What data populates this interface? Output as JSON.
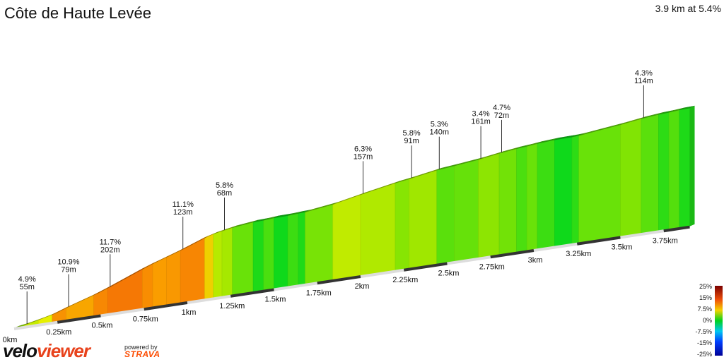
{
  "header": {
    "title": "Côte de Haute Levée",
    "summary": "3.9 km at 5.4%"
  },
  "branding": {
    "velo": "velo",
    "viewer": "viewer",
    "powered_by": "powered by",
    "strava": "STRAVA",
    "velo_color": "#111111",
    "viewer_color": "#e8421c",
    "strava_color": "#fc4c02"
  },
  "chart_data": {
    "type": "area",
    "title": "Côte de Haute Levée",
    "summary": "3.9 km at 5.4%",
    "xlabel": "",
    "ylabel": "",
    "x_ticks": [
      "0km",
      "0.25km",
      "0.5km",
      "0.75km",
      "1km",
      "1.25km",
      "1.5km",
      "1.75km",
      "2km",
      "2.25km",
      "2.5km",
      "2.75km",
      "3km",
      "3.25km",
      "3.5km",
      "3.75km"
    ],
    "x_unit": "km",
    "xlim": [
      0,
      3.9
    ],
    "segments": [
      {
        "start_km": 0.0,
        "end_km": 0.06,
        "gradient_pct": 4.9
      },
      {
        "start_km": 0.06,
        "end_km": 0.14,
        "gradient_pct": 6.5
      },
      {
        "start_km": 0.14,
        "end_km": 0.22,
        "gradient_pct": 7.5
      },
      {
        "start_km": 0.22,
        "end_km": 0.3,
        "gradient_pct": 10.9
      },
      {
        "start_km": 0.3,
        "end_km": 0.46,
        "gradient_pct": 9.8
      },
      {
        "start_km": 0.46,
        "end_km": 0.54,
        "gradient_pct": 11.5
      },
      {
        "start_km": 0.54,
        "end_km": 0.74,
        "gradient_pct": 12.5
      },
      {
        "start_km": 0.74,
        "end_km": 0.8,
        "gradient_pct": 11.2
      },
      {
        "start_km": 0.8,
        "end_km": 0.88,
        "gradient_pct": 10.2
      },
      {
        "start_km": 0.88,
        "end_km": 0.96,
        "gradient_pct": 10.5
      },
      {
        "start_km": 0.96,
        "end_km": 1.1,
        "gradient_pct": 11.6
      },
      {
        "start_km": 1.1,
        "end_km": 1.15,
        "gradient_pct": 8.5
      },
      {
        "start_km": 1.15,
        "end_km": 1.2,
        "gradient_pct": 6.0
      },
      {
        "start_km": 1.2,
        "end_km": 1.26,
        "gradient_pct": 5.5
      },
      {
        "start_km": 1.26,
        "end_km": 1.38,
        "gradient_pct": 3.5
      },
      {
        "start_km": 1.38,
        "end_km": 1.44,
        "gradient_pct": 1.0
      },
      {
        "start_km": 1.44,
        "end_km": 1.5,
        "gradient_pct": 2.5
      },
      {
        "start_km": 1.5,
        "end_km": 1.58,
        "gradient_pct": 0.5
      },
      {
        "start_km": 1.58,
        "end_km": 1.64,
        "gradient_pct": 2.0
      },
      {
        "start_km": 1.64,
        "end_km": 1.68,
        "gradient_pct": 1.0
      },
      {
        "start_km": 1.68,
        "end_km": 1.84,
        "gradient_pct": 4.0
      },
      {
        "start_km": 1.84,
        "end_km": 2.0,
        "gradient_pct": 6.3
      },
      {
        "start_km": 2.0,
        "end_km": 2.2,
        "gradient_pct": 5.8
      },
      {
        "start_km": 2.2,
        "end_km": 2.28,
        "gradient_pct": 4.5
      },
      {
        "start_km": 2.28,
        "end_km": 2.44,
        "gradient_pct": 5.3
      },
      {
        "start_km": 2.44,
        "end_km": 2.54,
        "gradient_pct": 3.0
      },
      {
        "start_km": 2.54,
        "end_km": 2.68,
        "gradient_pct": 3.4
      },
      {
        "start_km": 2.68,
        "end_km": 2.8,
        "gradient_pct": 4.7
      },
      {
        "start_km": 2.8,
        "end_km": 2.9,
        "gradient_pct": 3.8
      },
      {
        "start_km": 2.9,
        "end_km": 2.96,
        "gradient_pct": 2.5
      },
      {
        "start_km": 2.96,
        "end_km": 3.02,
        "gradient_pct": 3.5
      },
      {
        "start_km": 3.02,
        "end_km": 3.12,
        "gradient_pct": 2.0
      },
      {
        "start_km": 3.12,
        "end_km": 3.22,
        "gradient_pct": 0.5
      },
      {
        "start_km": 3.22,
        "end_km": 3.26,
        "gradient_pct": 1.5
      },
      {
        "start_km": 3.26,
        "end_km": 3.5,
        "gradient_pct": 3.5
      },
      {
        "start_km": 3.5,
        "end_km": 3.62,
        "gradient_pct": 4.3
      },
      {
        "start_km": 3.62,
        "end_km": 3.72,
        "gradient_pct": 3.0
      },
      {
        "start_km": 3.72,
        "end_km": 3.78,
        "gradient_pct": 1.5
      },
      {
        "start_km": 3.78,
        "end_km": 3.84,
        "gradient_pct": 2.8
      },
      {
        "start_km": 3.84,
        "end_km": 3.9,
        "gradient_pct": 1.0
      }
    ],
    "annotations": [
      {
        "km": 0.06,
        "gradient": "4.9%",
        "length": "55m"
      },
      {
        "km": 0.3,
        "gradient": "10.9%",
        "length": "79m"
      },
      {
        "km": 0.54,
        "gradient": "11.7%",
        "length": "202m"
      },
      {
        "km": 0.96,
        "gradient": "11.1%",
        "length": "123m"
      },
      {
        "km": 1.2,
        "gradient": "5.8%",
        "length": "68m"
      },
      {
        "km": 2.0,
        "gradient": "6.3%",
        "length": "157m"
      },
      {
        "km": 2.28,
        "gradient": "5.8%",
        "length": "91m"
      },
      {
        "km": 2.44,
        "gradient": "5.3%",
        "length": "140m"
      },
      {
        "km": 2.68,
        "gradient": "3.4%",
        "length": "161m"
      },
      {
        "km": 2.8,
        "gradient": "4.7%",
        "length": "72m"
      },
      {
        "km": 3.62,
        "gradient": "4.3%",
        "length": "114m"
      }
    ],
    "legend": {
      "labels": [
        "25%",
        "15%",
        "7.5%",
        "0%",
        "-7.5%",
        "-15%",
        "-25%"
      ],
      "placement": "bottom-right"
    }
  }
}
